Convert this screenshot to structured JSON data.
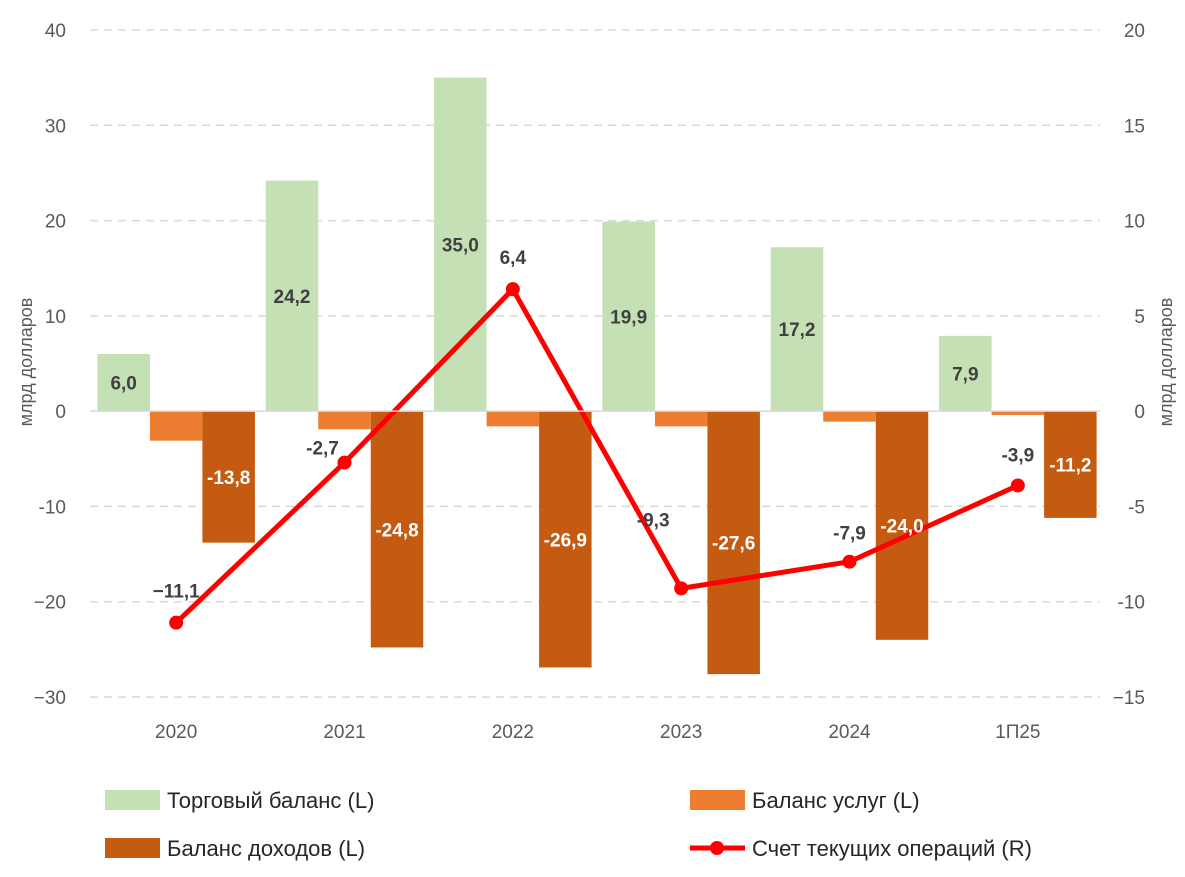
{
  "chart_data": {
    "type": "bar+line",
    "categories": [
      "2020",
      "2021",
      "2022",
      "2023",
      "2024",
      "1П25"
    ],
    "series": [
      {
        "name": "Торговый баланс (L)",
        "type": "bar",
        "axis": "left",
        "color": "#c5e0b4",
        "values": [
          6.0,
          24.2,
          35.0,
          19.9,
          17.2,
          7.9
        ],
        "labels": [
          "6,0",
          "24,2",
          "35,0",
          "19,9",
          "17,2",
          "7,9"
        ],
        "label_color": "#404040"
      },
      {
        "name": "Баланс услуг (L)",
        "type": "bar",
        "axis": "left",
        "color": "#ed7d31",
        "values": [
          -3.1,
          -1.9,
          -1.6,
          -1.6,
          -1.1,
          -0.4
        ],
        "labels": null
      },
      {
        "name": "Баланс доходов (L)",
        "type": "bar",
        "axis": "left",
        "color": "#c55a11",
        "values": [
          -13.8,
          -24.8,
          -26.9,
          -27.6,
          -24.0,
          -11.2
        ],
        "labels": [
          "-13,8",
          "-24,8",
          "-26,9",
          "-27,6",
          "-24,0",
          "-11,2"
        ],
        "label_color": "#ffffff"
      },
      {
        "name": "Счет текущих операций (R)",
        "type": "line",
        "axis": "right",
        "color": "#ff0000",
        "values": [
          -11.1,
          -2.7,
          6.4,
          -9.3,
          -7.9,
          -3.9
        ],
        "labels": [
          "−11,1",
          "-2,7",
          "6,4",
          "-9,3",
          "-7,9",
          "-3,9"
        ],
        "label_color": "#404040"
      }
    ],
    "y_left": {
      "label": "млрд долларов",
      "range": [
        -30,
        40
      ],
      "ticks": [
        40,
        30,
        20,
        10,
        0,
        -10,
        -20,
        -30
      ],
      "tick_labels": [
        "40",
        "30",
        "20",
        "10",
        "0",
        "-10",
        "−20",
        "−30"
      ]
    },
    "y_right": {
      "label": "млрд долларов",
      "range": [
        -15,
        20
      ],
      "ticks": [
        20,
        15,
        10,
        5,
        0,
        -5,
        -10,
        -15
      ],
      "tick_labels": [
        "20",
        "15",
        "10",
        "5",
        "0",
        "-5",
        "-10",
        "−15"
      ]
    },
    "grid": true,
    "legend_position": "bottom"
  }
}
